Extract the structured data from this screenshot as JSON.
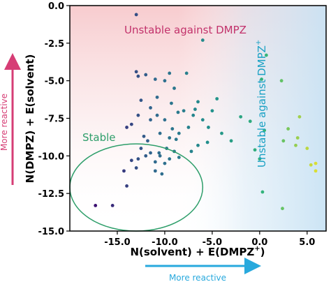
{
  "chart_data": {
    "type": "scatter",
    "xlabel": "N(solvent) + E(DMPZ",
    "xlabel_sup": "+",
    "xlabel_close": ")",
    "ylabel": "N(DMPZ) + E(solvent)",
    "xlim": [
      -20.0,
      7.0
    ],
    "ylim": [
      -15.0,
      0.0
    ],
    "x_ticks": [
      {
        "value": -15,
        "label": "-15.0"
      },
      {
        "value": -10,
        "label": "-10.0"
      },
      {
        "value": -5,
        "label": "-5.0"
      },
      {
        "value": 0,
        "label": "0.0"
      },
      {
        "value": 5,
        "label": "5.0"
      }
    ],
    "y_ticks": [
      {
        "value": 0,
        "label": "0.0"
      },
      {
        "value": -2.5,
        "label": "-2.5"
      },
      {
        "value": -5,
        "label": "-5.0"
      },
      {
        "value": -7.5,
        "label": "-7.5"
      },
      {
        "value": -10,
        "label": "-10.0"
      },
      {
        "value": -12.5,
        "label": "-12.5"
      },
      {
        "value": -15,
        "label": "-15.0"
      }
    ],
    "grid": false,
    "background_regions": [
      {
        "region": "upper",
        "color": "#f7c9cc"
      },
      {
        "region": "right",
        "color": "#c9e3f4"
      }
    ],
    "colormap": [
      "#3b0f70",
      "#31688e",
      "#21918c",
      "#35b779",
      "#fde725"
    ],
    "points": [
      {
        "x": -17.3,
        "y": -13.3
      },
      {
        "x": -15.5,
        "y": -13.3
      },
      {
        "x": -14.0,
        "y": -12.0
      },
      {
        "x": -14.3,
        "y": -11.0
      },
      {
        "x": -13.0,
        "y": -10.8
      },
      {
        "x": -12.5,
        "y": -9.5
      },
      {
        "x": -12.0,
        "y": -10.0
      },
      {
        "x": -11.5,
        "y": -9.8
      },
      {
        "x": -11.0,
        "y": -10.4
      },
      {
        "x": -10.5,
        "y": -10.0
      },
      {
        "x": -10.0,
        "y": -10.5
      },
      {
        "x": -9.5,
        "y": -10.2
      },
      {
        "x": -9.0,
        "y": -9.7
      },
      {
        "x": -8.5,
        "y": -10.1
      },
      {
        "x": -12.8,
        "y": -10.2
      },
      {
        "x": -13.5,
        "y": -10.3
      },
      {
        "x": -11.0,
        "y": -11.0
      },
      {
        "x": -10.3,
        "y": -11.2
      },
      {
        "x": -9.8,
        "y": -9.5
      },
      {
        "x": -10.6,
        "y": -9.8
      },
      {
        "x": -11.8,
        "y": -9.0
      },
      {
        "x": -12.2,
        "y": -8.7
      },
      {
        "x": -10.5,
        "y": -8.5
      },
      {
        "x": -9.5,
        "y": -8.8
      },
      {
        "x": -8.8,
        "y": -8.9
      },
      {
        "x": -9.2,
        "y": -8.2
      },
      {
        "x": -10.0,
        "y": -7.6
      },
      {
        "x": -10.8,
        "y": -7.3
      },
      {
        "x": -11.5,
        "y": -7.6
      },
      {
        "x": -12.8,
        "y": -7.3
      },
      {
        "x": -13.5,
        "y": -7.9
      },
      {
        "x": -14.0,
        "y": -8.1
      },
      {
        "x": -11.5,
        "y": -6.8
      },
      {
        "x": -12.5,
        "y": -6.3
      },
      {
        "x": -10.8,
        "y": -6.1
      },
      {
        "x": -9.3,
        "y": -6.5
      },
      {
        "x": -8.6,
        "y": -7.1
      },
      {
        "x": -8.0,
        "y": -7.0
      },
      {
        "x": -8.5,
        "y": -8.5
      },
      {
        "x": -7.5,
        "y": -8.1
      },
      {
        "x": -7.0,
        "y": -7.3
      },
      {
        "x": -6.5,
        "y": -6.4
      },
      {
        "x": -6.8,
        "y": -6.9
      },
      {
        "x": -6.0,
        "y": -7.6
      },
      {
        "x": -5.4,
        "y": -8.1
      },
      {
        "x": -5.5,
        "y": -9.1
      },
      {
        "x": -6.5,
        "y": -9.3
      },
      {
        "x": -7.2,
        "y": -9.7
      },
      {
        "x": -9.0,
        "y": -5.5
      },
      {
        "x": -10.0,
        "y": -5.0
      },
      {
        "x": -11.0,
        "y": -4.9
      },
      {
        "x": -12.0,
        "y": -4.6
      },
      {
        "x": -12.8,
        "y": -4.7
      },
      {
        "x": -13.0,
        "y": -4.4
      },
      {
        "x": -9.5,
        "y": -4.5
      },
      {
        "x": -7.7,
        "y": -4.5
      },
      {
        "x": -13.0,
        "y": -0.6
      },
      {
        "x": -6.0,
        "y": -2.3
      },
      {
        "x": -4.5,
        "y": -6.2
      },
      {
        "x": -5.0,
        "y": -7.0
      },
      {
        "x": -4.0,
        "y": -8.5
      },
      {
        "x": -3.0,
        "y": -9.0
      },
      {
        "x": -2.0,
        "y": -7.4
      },
      {
        "x": -1.0,
        "y": -7.7
      },
      {
        "x": -0.5,
        "y": -9.6
      },
      {
        "x": 0.0,
        "y": -10.2
      },
      {
        "x": 0.5,
        "y": -8.3
      },
      {
        "x": 0.2,
        "y": -4.9
      },
      {
        "x": 0.7,
        "y": -3.3
      },
      {
        "x": 2.3,
        "y": -5.0
      },
      {
        "x": 2.5,
        "y": -9.0
      },
      {
        "x": 3.0,
        "y": -8.2
      },
      {
        "x": 3.8,
        "y": -9.3
      },
      {
        "x": 4.0,
        "y": -8.8
      },
      {
        "x": 5.0,
        "y": -9.5
      },
      {
        "x": 5.4,
        "y": -10.6
      },
      {
        "x": 5.9,
        "y": -10.5
      },
      {
        "x": 5.9,
        "y": -11.0
      },
      {
        "x": 4.2,
        "y": -7.4
      },
      {
        "x": 0.3,
        "y": -12.4
      },
      {
        "x": 2.4,
        "y": -13.5
      }
    ],
    "annotations": [
      {
        "id": "stable",
        "text": "Stable",
        "color": "#2e9e6a"
      },
      {
        "id": "unstable-dmpz",
        "text": "Unstable against DMPZ",
        "color": "#c2326b"
      },
      {
        "id": "unstable-dmpz-plus",
        "text": "Unstable against DMPZ",
        "sup": "+",
        "color": "#1aa1c4"
      }
    ],
    "stable_ellipse": {
      "cx": -13.0,
      "cy": -12.1,
      "rx": 7.0,
      "ry": 2.9,
      "color": "#2e9e6a"
    },
    "side_arrows": [
      {
        "id": "y-arrow",
        "text": "More reactive",
        "color": "#d63d75"
      },
      {
        "id": "x-arrow",
        "text": "More reactive",
        "color": "#28a9dd"
      }
    ]
  }
}
